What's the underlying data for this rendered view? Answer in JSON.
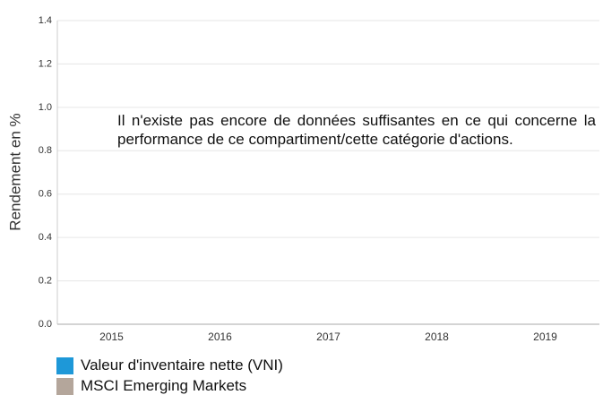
{
  "chart_data": {
    "type": "bar",
    "y_label": "Rendement en %",
    "annotation": "Il n'existe pas encore de données suffisantes en ce qui concerne la performance de ce compartiment/cette catégorie d'actions.",
    "categories": [
      "2015",
      "2016",
      "2017",
      "2018",
      "2019"
    ],
    "series": [
      {
        "name": "Valeur d'inventaire nette (VNI)",
        "color": "#1e98d8",
        "values": [
          null,
          null,
          null,
          null,
          null
        ]
      },
      {
        "name": "MSCI Emerging Markets",
        "color": "#b4a69b",
        "values": [
          null,
          null,
          null,
          null,
          null
        ]
      }
    ],
    "ylim": [
      0,
      1.4
    ],
    "yticks": [
      {
        "value": 0,
        "label": "0.0"
      },
      0.2,
      0.4,
      0.6,
      0.8,
      {
        "value": 1,
        "label": "1.0"
      },
      1.2,
      1.4
    ],
    "grid": true
  }
}
